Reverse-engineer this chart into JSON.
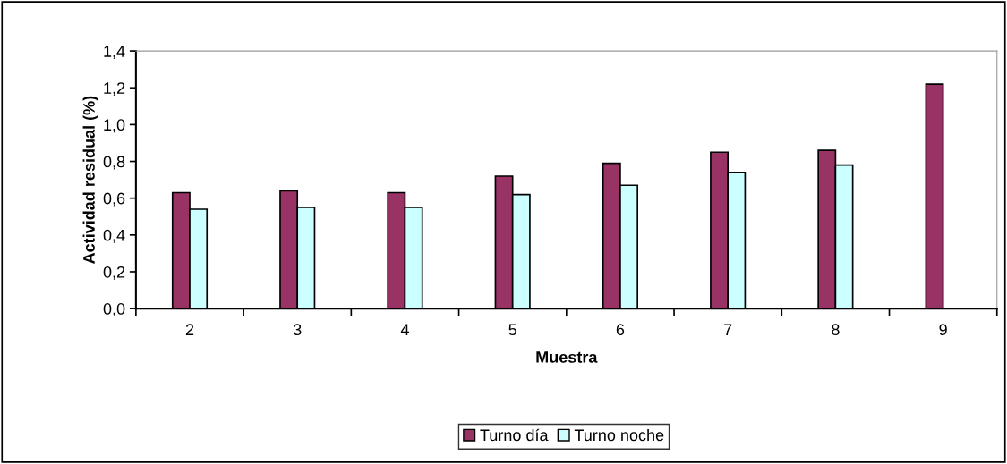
{
  "chart_data": {
    "type": "bar",
    "xlabel": "Muestra",
    "ylabel": "Actividad residual (%)",
    "categories": [
      "2",
      "3",
      "4",
      "5",
      "6",
      "7",
      "8",
      "9"
    ],
    "series": [
      {
        "name": "Turno día",
        "color": "#993366",
        "values": [
          0.63,
          0.64,
          0.63,
          0.72,
          0.79,
          0.85,
          0.86,
          1.22
        ]
      },
      {
        "name": "Turno noche",
        "color": "#ccffff",
        "values": [
          0.54,
          0.55,
          0.55,
          0.62,
          0.67,
          0.74,
          0.78,
          null
        ]
      }
    ],
    "ylim": [
      0,
      1.4
    ],
    "yticks": [
      {
        "value": 0,
        "label": "0,0"
      },
      {
        "value": 0.2,
        "label": "0,2"
      },
      {
        "value": 0.4,
        "label": "0,4"
      },
      {
        "value": 0.6,
        "label": "0,6"
      },
      {
        "value": 0.8,
        "label": "0,8"
      },
      {
        "value": 1.0,
        "label": "1,0"
      },
      {
        "value": 1.2,
        "label": "1,2"
      },
      {
        "value": 1.4,
        "label": "1,4"
      }
    ],
    "grid": false,
    "legend": "bottom"
  }
}
